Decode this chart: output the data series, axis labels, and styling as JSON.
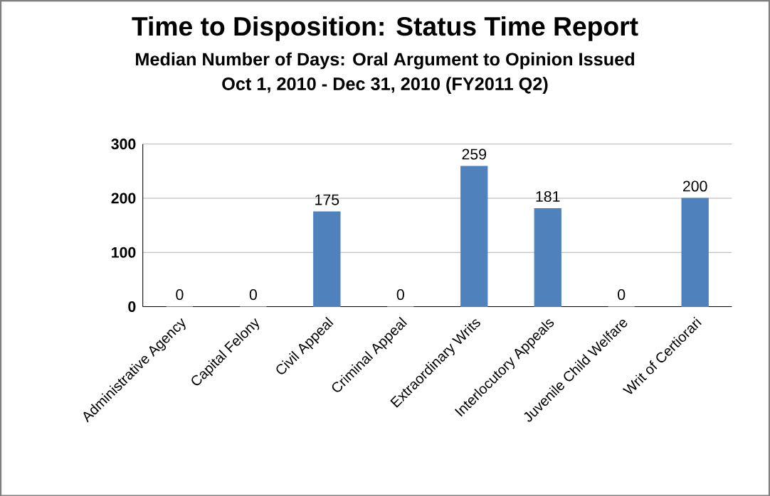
{
  "chart_data": {
    "type": "bar",
    "title": "Time to Disposition:  Status Time Report",
    "subtitle": "Median Number of Days: Oral Argument to Opinion Issued",
    "annotations": [
      "Oct 1, 2010 - Dec 31, 2010 (FY2011 Q2)"
    ],
    "categories": [
      "Administrative Agency",
      "Capital Felony",
      "Civil Appeal",
      "Criminal Appeal",
      "Extraordinary Writs",
      "Interlocutory Appeals",
      "Juvenile Child Welfare",
      "Writ of Certiorari"
    ],
    "values": [
      0,
      0,
      175,
      0,
      259,
      181,
      0,
      200
    ],
    "color": "#4f81bd",
    "ylim": [
      0,
      300
    ],
    "yticks": [
      0,
      100,
      200,
      300
    ],
    "grid": "y",
    "data_labels": true
  }
}
